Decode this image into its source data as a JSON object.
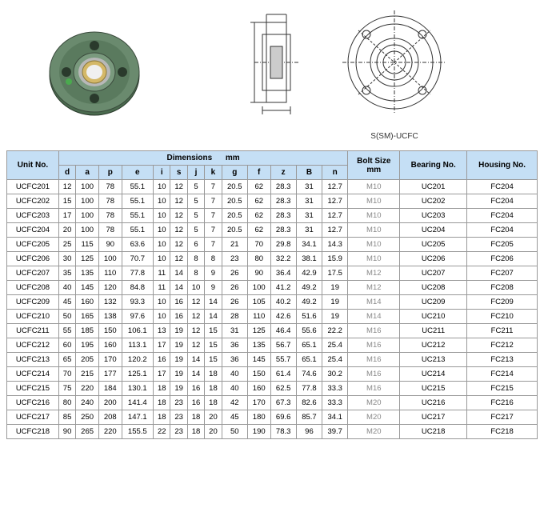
{
  "colors": {
    "header_bg": "#c5dff5",
    "border": "#999999",
    "text": "#333333",
    "flange_green": "#5a7a5a",
    "flange_brass": "#c4a858"
  },
  "drawing_label": "S(SM)-UCFC",
  "table": {
    "headers": {
      "unit_no": "Unit No.",
      "dimensions": "Dimensions",
      "dimensions_unit": "mm",
      "bolt_size": "Bolt Size",
      "bolt_unit": "mm",
      "bearing_no": "Bearing No.",
      "housing_no": "Housing No."
    },
    "sub_headers": [
      "d",
      "a",
      "p",
      "e",
      "i",
      "s",
      "j",
      "k",
      "g",
      "f",
      "z",
      "B",
      "n"
    ],
    "rows": [
      {
        "unit": "UCFC201",
        "d": "12",
        "a": "100",
        "p": "78",
        "e": "55.1",
        "i": "10",
        "s": "12",
        "j": "5",
        "k": "7",
        "g": "20.5",
        "f": "62",
        "z": "28.3",
        "B": "31",
        "n": "12.7",
        "bolt": "M10",
        "bearing": "UC201",
        "housing": "FC204"
      },
      {
        "unit": "UCFC202",
        "d": "15",
        "a": "100",
        "p": "78",
        "e": "55.1",
        "i": "10",
        "s": "12",
        "j": "5",
        "k": "7",
        "g": "20.5",
        "f": "62",
        "z": "28.3",
        "B": "31",
        "n": "12.7",
        "bolt": "M10",
        "bearing": "UC202",
        "housing": "FC204"
      },
      {
        "unit": "UCFC203",
        "d": "17",
        "a": "100",
        "p": "78",
        "e": "55.1",
        "i": "10",
        "s": "12",
        "j": "5",
        "k": "7",
        "g": "20.5",
        "f": "62",
        "z": "28.3",
        "B": "31",
        "n": "12.7",
        "bolt": "M10",
        "bearing": "UC203",
        "housing": "FC204"
      },
      {
        "unit": "UCFC204",
        "d": "20",
        "a": "100",
        "p": "78",
        "e": "55.1",
        "i": "10",
        "s": "12",
        "j": "5",
        "k": "7",
        "g": "20.5",
        "f": "62",
        "z": "28.3",
        "B": "31",
        "n": "12.7",
        "bolt": "M10",
        "bearing": "UC204",
        "housing": "FC204"
      },
      {
        "unit": "UCFC205",
        "d": "25",
        "a": "115",
        "p": "90",
        "e": "63.6",
        "i": "10",
        "s": "12",
        "j": "6",
        "k": "7",
        "g": "21",
        "f": "70",
        "z": "29.8",
        "B": "34.1",
        "n": "14.3",
        "bolt": "M10",
        "bearing": "UC205",
        "housing": "FC205"
      },
      {
        "unit": "UCFC206",
        "d": "30",
        "a": "125",
        "p": "100",
        "e": "70.7",
        "i": "10",
        "s": "12",
        "j": "8",
        "k": "8",
        "g": "23",
        "f": "80",
        "z": "32.2",
        "B": "38.1",
        "n": "15.9",
        "bolt": "M10",
        "bearing": "UC206",
        "housing": "FC206"
      },
      {
        "unit": "UCFC207",
        "d": "35",
        "a": "135",
        "p": "110",
        "e": "77.8",
        "i": "11",
        "s": "14",
        "j": "8",
        "k": "9",
        "g": "26",
        "f": "90",
        "z": "36.4",
        "B": "42.9",
        "n": "17.5",
        "bolt": "M12",
        "bearing": "UC207",
        "housing": "FC207"
      },
      {
        "unit": "UCFC208",
        "d": "40",
        "a": "145",
        "p": "120",
        "e": "84.8",
        "i": "11",
        "s": "14",
        "j": "10",
        "k": "9",
        "g": "26",
        "f": "100",
        "z": "41.2",
        "B": "49.2",
        "n": "19",
        "bolt": "M12",
        "bearing": "UC208",
        "housing": "FC208"
      },
      {
        "unit": "UCFC209",
        "d": "45",
        "a": "160",
        "p": "132",
        "e": "93.3",
        "i": "10",
        "s": "16",
        "j": "12",
        "k": "14",
        "g": "26",
        "f": "105",
        "z": "40.2",
        "B": "49.2",
        "n": "19",
        "bolt": "M14",
        "bearing": "UC209",
        "housing": "FC209"
      },
      {
        "unit": "UCFC210",
        "d": "50",
        "a": "165",
        "p": "138",
        "e": "97.6",
        "i": "10",
        "s": "16",
        "j": "12",
        "k": "14",
        "g": "28",
        "f": "110",
        "z": "42.6",
        "B": "51.6",
        "n": "19",
        "bolt": "M14",
        "bearing": "UC210",
        "housing": "FC210"
      },
      {
        "unit": "UCFC211",
        "d": "55",
        "a": "185",
        "p": "150",
        "e": "106.1",
        "i": "13",
        "s": "19",
        "j": "12",
        "k": "15",
        "g": "31",
        "f": "125",
        "z": "46.4",
        "B": "55.6",
        "n": "22.2",
        "bolt": "M16",
        "bearing": "UC211",
        "housing": "FC211"
      },
      {
        "unit": "UCFC212",
        "d": "60",
        "a": "195",
        "p": "160",
        "e": "113.1",
        "i": "17",
        "s": "19",
        "j": "12",
        "k": "15",
        "g": "36",
        "f": "135",
        "z": "56.7",
        "B": "65.1",
        "n": "25.4",
        "bolt": "M16",
        "bearing": "UC212",
        "housing": "FC212"
      },
      {
        "unit": "UCFC213",
        "d": "65",
        "a": "205",
        "p": "170",
        "e": "120.2",
        "i": "16",
        "s": "19",
        "j": "14",
        "k": "15",
        "g": "36",
        "f": "145",
        "z": "55.7",
        "B": "65.1",
        "n": "25.4",
        "bolt": "M16",
        "bearing": "UC213",
        "housing": "FC213"
      },
      {
        "unit": "UCFC214",
        "d": "70",
        "a": "215",
        "p": "177",
        "e": "125.1",
        "i": "17",
        "s": "19",
        "j": "14",
        "k": "18",
        "g": "40",
        "f": "150",
        "z": "61.4",
        "B": "74.6",
        "n": "30.2",
        "bolt": "M16",
        "bearing": "UC214",
        "housing": "FC214"
      },
      {
        "unit": "UCFC215",
        "d": "75",
        "a": "220",
        "p": "184",
        "e": "130.1",
        "i": "18",
        "s": "19",
        "j": "16",
        "k": "18",
        "g": "40",
        "f": "160",
        "z": "62.5",
        "B": "77.8",
        "n": "33.3",
        "bolt": "M16",
        "bearing": "UC215",
        "housing": "FC215"
      },
      {
        "unit": "UCFC216",
        "d": "80",
        "a": "240",
        "p": "200",
        "e": "141.4",
        "i": "18",
        "s": "23",
        "j": "16",
        "k": "18",
        "g": "42",
        "f": "170",
        "z": "67.3",
        "B": "82.6",
        "n": "33.3",
        "bolt": "M20",
        "bearing": "UC216",
        "housing": "FC216"
      },
      {
        "unit": "UCFC217",
        "d": "85",
        "a": "250",
        "p": "208",
        "e": "147.1",
        "i": "18",
        "s": "23",
        "j": "18",
        "k": "20",
        "g": "45",
        "f": "180",
        "z": "69.6",
        "B": "85.7",
        "n": "34.1",
        "bolt": "M20",
        "bearing": "UC217",
        "housing": "FC217"
      },
      {
        "unit": "UCFC218",
        "d": "90",
        "a": "265",
        "p": "220",
        "e": "155.5",
        "i": "22",
        "s": "23",
        "j": "18",
        "k": "20",
        "g": "50",
        "f": "190",
        "z": "78.3",
        "B": "96",
        "n": "39.7",
        "bolt": "M20",
        "bearing": "UC218",
        "housing": "FC218"
      }
    ]
  }
}
